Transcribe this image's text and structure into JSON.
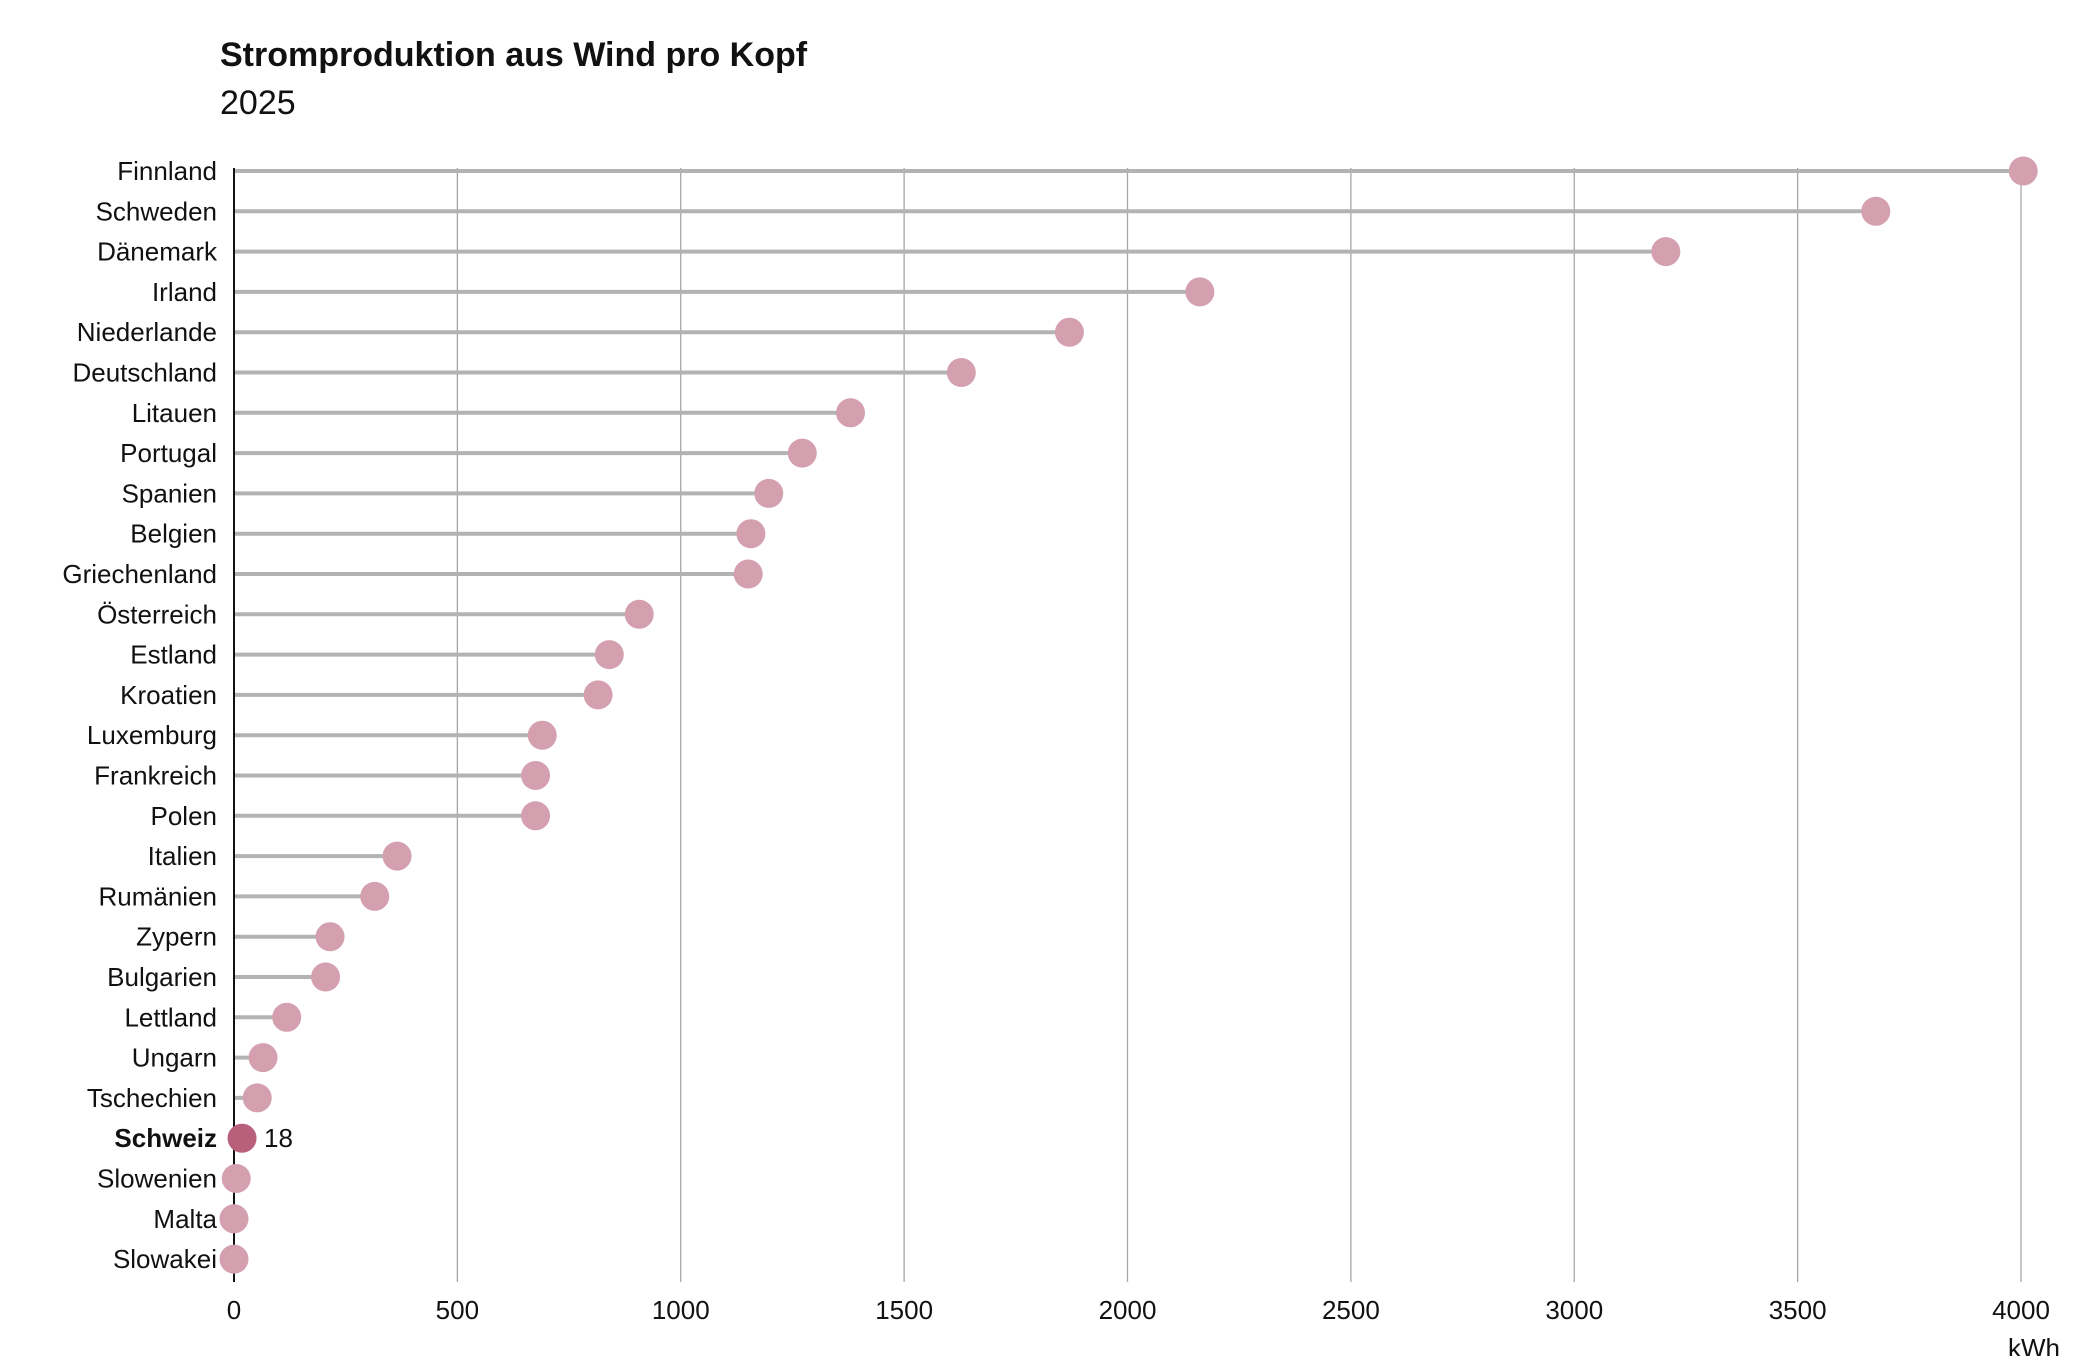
{
  "chart_data": {
    "type": "lollipop",
    "title": "Stromproduktion aus Wind pro Kopf",
    "subtitle": "2025",
    "xlabel": "kWh",
    "xlim": [
      0,
      4000
    ],
    "xticks": [
      0,
      500,
      1000,
      1500,
      2000,
      2500,
      3000,
      3500,
      4000
    ],
    "grid": true,
    "highlight": "Schweiz",
    "colors": {
      "line": "#b3b3b3",
      "dot": "#d4a0b0",
      "dot_highlight": "#b85f7c",
      "grid": "#a6a6a6",
      "axis": "#111111"
    },
    "categories": [
      "Finnland",
      "Schweden",
      "Dänemark",
      "Irland",
      "Niederlande",
      "Deutschland",
      "Litauen",
      "Portugal",
      "Spanien",
      "Belgien",
      "Griechenland",
      "Österreich",
      "Estland",
      "Kroatien",
      "Luxemburg",
      "Frankreich",
      "Polen",
      "Italien",
      "Rumänien",
      "Zypern",
      "Bulgarien",
      "Lettland",
      "Ungarn",
      "Tschechien",
      "Schweiz",
      "Slowenien",
      "Malta",
      "Slowakei"
    ],
    "values": [
      4005,
      3675,
      3205,
      2162,
      1870,
      1628,
      1380,
      1272,
      1197,
      1157,
      1151,
      907,
      840,
      815,
      690,
      675,
      675,
      365,
      315,
      215,
      205,
      118,
      65,
      52,
      18,
      5,
      0,
      0
    ],
    "value_labels": {
      "Schweiz": "18"
    }
  }
}
